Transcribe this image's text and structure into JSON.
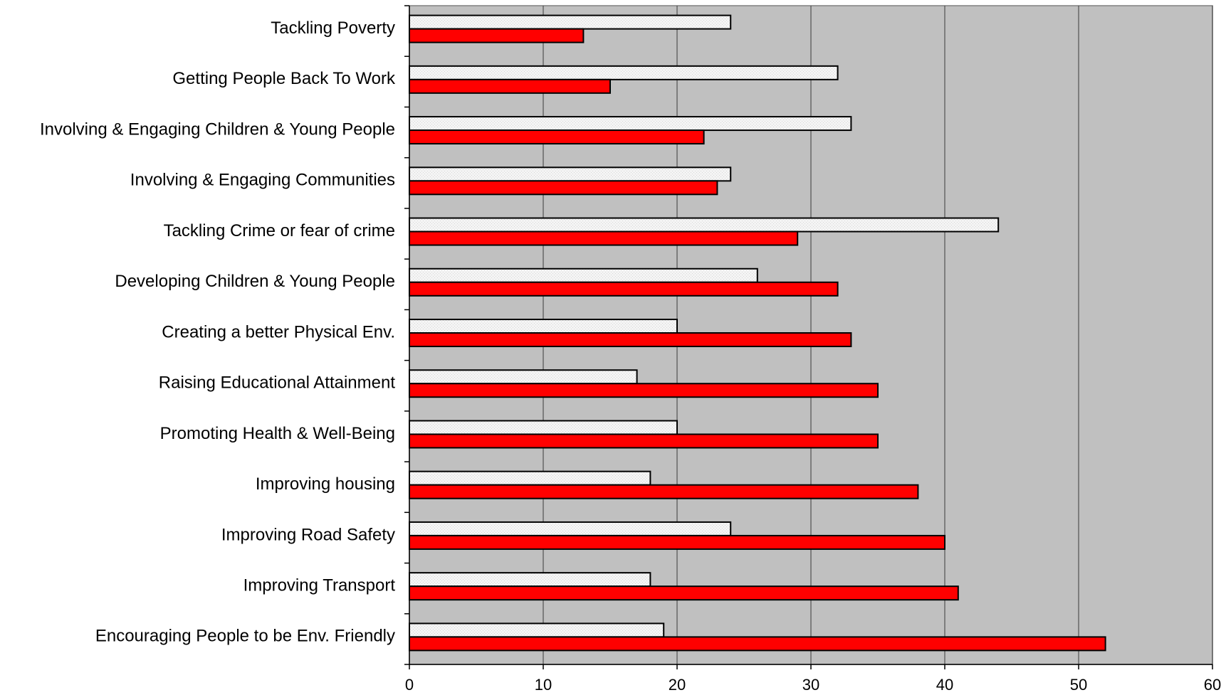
{
  "chart_data": {
    "type": "bar",
    "orientation": "horizontal",
    "title": "",
    "xlabel": "",
    "ylabel": "",
    "xlim": [
      0,
      60
    ],
    "x_ticks": [
      0,
      10,
      20,
      30,
      40,
      50,
      60
    ],
    "grid": "vertical major gridlines",
    "legend": "none",
    "plot_background": "#c0c0c0",
    "categories": [
      "Tackling Poverty",
      "Getting People Back To Work",
      "Involving & Engaging Children & Young People",
      "Involving & Engaging Communities",
      "Tackling Crime or fear of crime",
      "Developing Children & Young People",
      "Creating a better Physical Env.",
      "Raising Educational Attainment",
      "Promoting Health & Well-Being",
      "Improving housing",
      "Improving Road Safety",
      "Improving Transport",
      "Encouraging People to be Env. Friendly"
    ],
    "series": [
      {
        "color": "#f2f2f2",
        "values": [
          24,
          32,
          33,
          24,
          44,
          26,
          20,
          17,
          20,
          18,
          24,
          18,
          19
        ]
      },
      {
        "color": "#ff0000",
        "values": [
          13,
          15,
          22,
          23,
          29,
          32,
          33,
          35,
          35,
          38,
          40,
          41,
          52
        ]
      }
    ]
  }
}
